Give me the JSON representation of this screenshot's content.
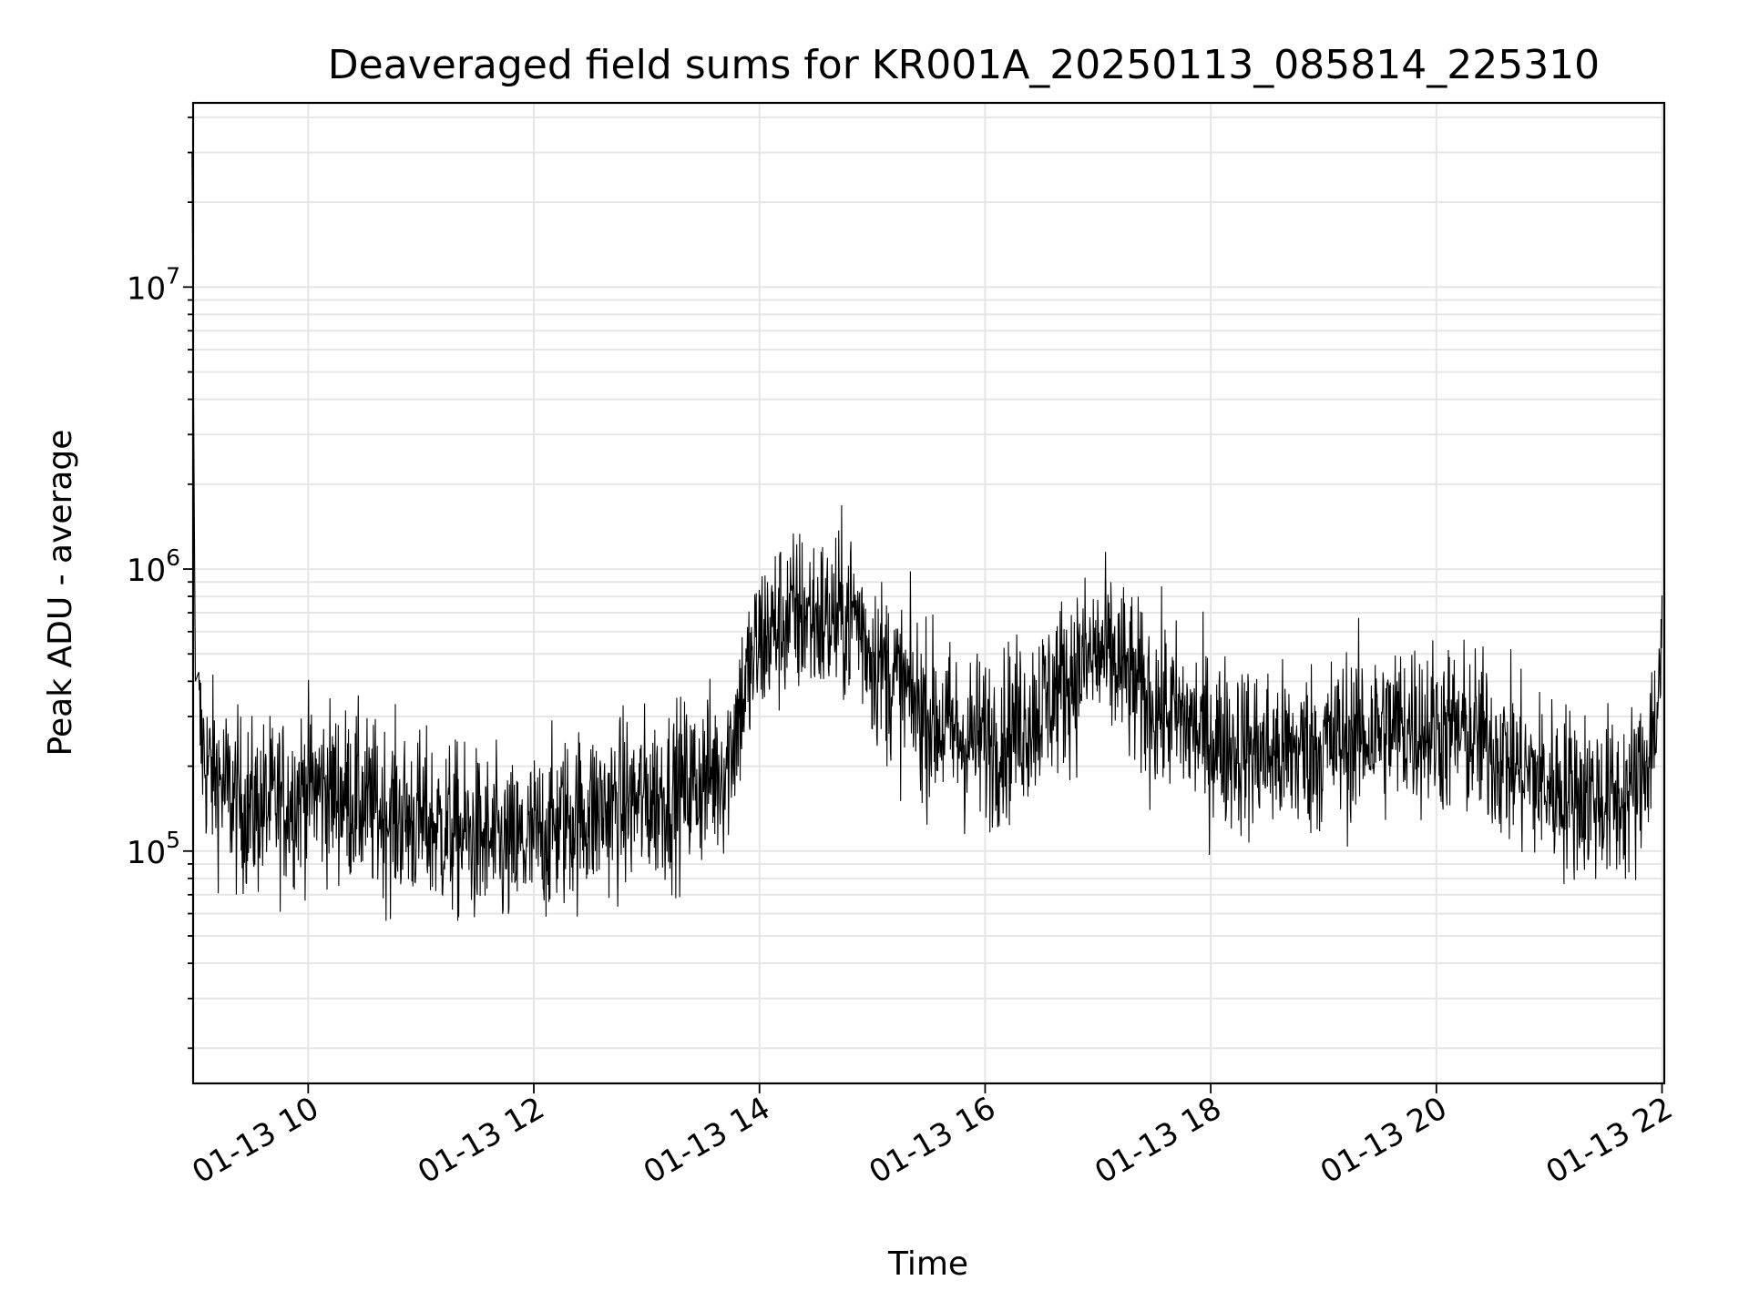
{
  "chart_data": {
    "type": "line",
    "title": "Deaveraged field sums for KR001A_20250113_085814_225310",
    "xlabel": "Time",
    "ylabel": "Peak ADU - average",
    "x_ticks": [
      "01-13 10",
      "01-13 12",
      "01-13 14",
      "01-13 16",
      "01-13 18",
      "01-13 20",
      "01-13 22"
    ],
    "x_tick_hours": [
      10,
      12,
      14,
      16,
      18,
      20,
      22
    ],
    "y_ticks": [
      {
        "value": 100000,
        "base": "10",
        "exp": "5"
      },
      {
        "value": 1000000,
        "base": "10",
        "exp": "6"
      },
      {
        "value": 10000000,
        "base": "10",
        "exp": "7"
      }
    ],
    "y_scale": "log",
    "xlim_hours": [
      8.98,
      22.02
    ],
    "ylim": [
      15000,
      45000000
    ],
    "grid": true,
    "line_color": "#000000",
    "series": [
      {
        "x_hours": [
          8.97,
          9.0,
          9.05,
          9.1,
          9.2,
          9.35,
          9.5,
          9.8,
          10.0,
          10.3,
          10.6,
          10.9,
          11.2,
          11.5,
          11.8,
          12.0,
          12.3,
          12.6,
          12.9,
          13.2,
          13.5,
          13.7,
          13.85,
          14.0,
          14.2,
          14.4,
          14.6,
          14.85,
          15.0,
          15.2,
          15.5,
          15.8,
          16.1,
          16.4,
          16.7,
          17.0,
          17.2,
          17.4,
          17.7,
          18.0,
          18.3,
          18.6,
          18.9,
          19.2,
          19.5,
          19.8,
          20.1,
          20.4,
          20.7,
          21.0,
          21.3,
          21.6,
          21.8,
          21.95,
          22.02
        ],
        "values": [
          30000000,
          400000,
          250000,
          200000,
          180000,
          150000,
          140000,
          150000,
          170000,
          160000,
          140000,
          130000,
          120000,
          110000,
          100000,
          110000,
          130000,
          140000,
          150000,
          160000,
          180000,
          200000,
          350000,
          550000,
          650000,
          700000,
          650000,
          700000,
          500000,
          400000,
          300000,
          250000,
          250000,
          300000,
          400000,
          500000,
          450000,
          350000,
          300000,
          250000,
          230000,
          220000,
          230000,
          250000,
          270000,
          280000,
          270000,
          250000,
          200000,
          170000,
          160000,
          150000,
          170000,
          300000,
          600000
        ]
      }
    ]
  }
}
